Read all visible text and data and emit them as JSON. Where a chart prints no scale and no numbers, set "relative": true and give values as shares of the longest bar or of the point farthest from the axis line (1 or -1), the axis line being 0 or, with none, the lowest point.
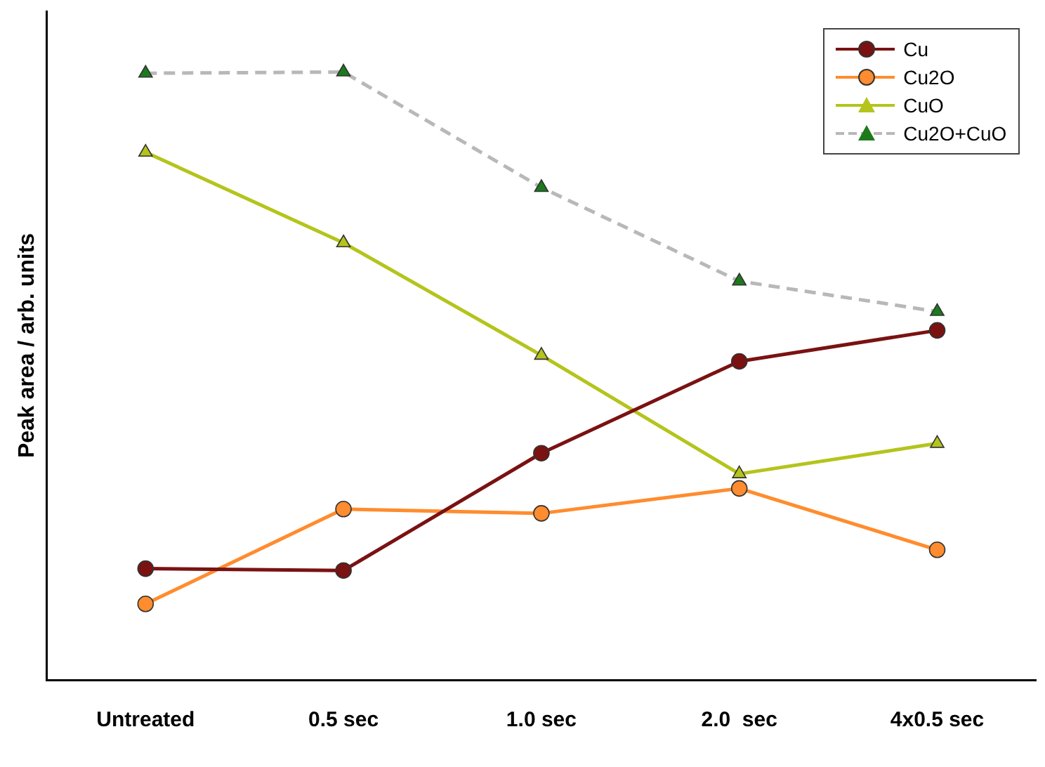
{
  "chart_data": {
    "type": "line",
    "ylabel": "Peak area / arb. units",
    "relative": true,
    "categories": [
      "Untreated",
      "0.5 sec",
      "1.0 sec",
      "2.0  sec",
      "4x0.5 sec"
    ],
    "grid": false,
    "legend": "top right",
    "series": [
      {
        "name": "Cu",
        "color": "#7a1212",
        "marker": "circle",
        "values": [
          0.183,
          0.18,
          0.373,
          0.524,
          0.575
        ]
      },
      {
        "name": "Cu2O",
        "color": "#ff8c2e",
        "marker": "circle",
        "values": [
          0.125,
          0.281,
          0.274,
          0.315,
          0.214
        ]
      },
      {
        "name": "CuO",
        "color": "#b4c41c",
        "marker": "triangle",
        "values": [
          0.868,
          0.719,
          0.534,
          0.339,
          0.389
        ]
      },
      {
        "name": "Cu2O+CuO",
        "color": "#b8b8b8",
        "colors": [
          "#1c7a1c",
          "#1c7a1c",
          "#1c7a1c",
          "#1c7a1c",
          "#1c7a1c"
        ],
        "marker": "triangle",
        "line_style": "dashed",
        "values": [
          0.998,
          1.0,
          0.81,
          0.656,
          0.606
        ]
      }
    ]
  }
}
